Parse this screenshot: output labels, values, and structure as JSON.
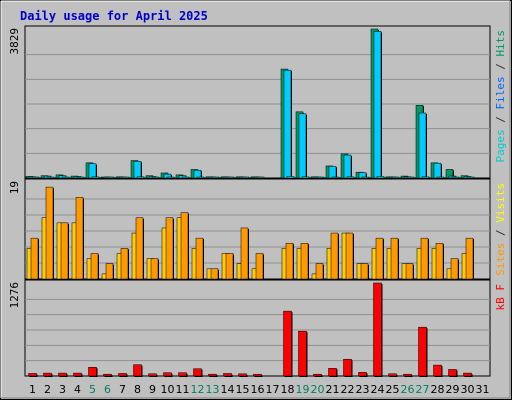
{
  "chart_data": {
    "type": "bar",
    "title": "Daily usage for April 2025",
    "categories": [
      "1",
      "2",
      "3",
      "4",
      "5",
      "6",
      "7",
      "8",
      "9",
      "10",
      "11",
      "12",
      "13",
      "14",
      "15",
      "16",
      "17",
      "18",
      "19",
      "20",
      "21",
      "22",
      "23",
      "24",
      "25",
      "26",
      "27",
      "28",
      "29",
      "30",
      "31"
    ],
    "weekend_days": [
      "5",
      "6",
      "12",
      "13",
      "19",
      "20",
      "26",
      "27"
    ],
    "grid": true,
    "panels": [
      {
        "id": "hits_files_pages",
        "ymax": 3829,
        "ymax_label": "3829",
        "right_label": [
          {
            "text": "Pages",
            "color": "#00cccc"
          },
          {
            "text": " / ",
            "color": "#333333"
          },
          {
            "text": "Files",
            "color": "#0066ff"
          },
          {
            "text": " / ",
            "color": "#333333"
          },
          {
            "text": "Hits",
            "color": "#009966"
          }
        ],
        "series": [
          {
            "color": "#009966",
            "values": [
              40,
              60,
              80,
              50,
              390,
              20,
              30,
              450,
              60,
              130,
              80,
              220,
              30,
              30,
              30,
              30,
              0,
              2800,
              1700,
              30,
              310,
              620,
              150,
              3829,
              30,
              50,
              1870,
              390,
              220,
              60,
              0
            ]
          },
          {
            "color": "#00ccff",
            "values": [
              30,
              50,
              60,
              40,
              370,
              20,
              20,
              430,
              40,
              100,
              60,
              200,
              20,
              20,
              20,
              20,
              0,
              2770,
              1650,
              20,
              300,
              590,
              140,
              3770,
              20,
              30,
              1670,
              380,
              50,
              40,
              0
            ]
          },
          {
            "color": "#00e5e5",
            "values": [
              10,
              20,
              20,
              10,
              30,
              10,
              10,
              30,
              10,
              20,
              10,
              20,
              10,
              10,
              10,
              10,
              0,
              40,
              30,
              10,
              20,
              30,
              20,
              40,
              10,
              10,
              30,
              20,
              10,
              10,
              0
            ]
          }
        ]
      },
      {
        "id": "visits_sites",
        "ymax": 19,
        "ymax_label": "19",
        "right_label": [
          {
            "text": "Sites",
            "color": "#ff9900"
          },
          {
            "text": " / ",
            "color": "#333333"
          },
          {
            "text": "Visits",
            "color": "#ffff00"
          }
        ],
        "series": [
          {
            "color": "#ffcc00",
            "values": [
              6,
              12,
              11,
              11,
              4,
              1,
              5,
              9,
              4,
              10,
              12,
              6,
              2,
              5,
              3,
              2,
              0,
              6,
              6,
              1,
              6,
              9,
              3,
              6,
              6,
              3,
              6,
              6,
              2,
              5,
              0
            ]
          },
          {
            "color": "#ff9900",
            "values": [
              8,
              18,
              11,
              16,
              5,
              3,
              6,
              12,
              4,
              12,
              13,
              8,
              2,
              5,
              10,
              5,
              0,
              7,
              7,
              3,
              9,
              9,
              3,
              8,
              8,
              3,
              8,
              7,
              4,
              8,
              0
            ]
          }
        ]
      },
      {
        "id": "kbytes",
        "ymax": 1276,
        "ymax_label": "1276",
        "right_label": [
          {
            "text": "kB F",
            "color": "#ff0000"
          }
        ],
        "series": [
          {
            "color": "#ff0000",
            "values": [
              35,
              40,
              40,
              40,
              120,
              25,
              35,
              155,
              30,
              45,
              45,
              100,
              25,
              35,
              30,
              25,
              0,
              890,
              615,
              25,
              105,
              230,
              50,
              1276,
              30,
              25,
              670,
              150,
              90,
              40,
              0
            ]
          }
        ]
      }
    ]
  }
}
